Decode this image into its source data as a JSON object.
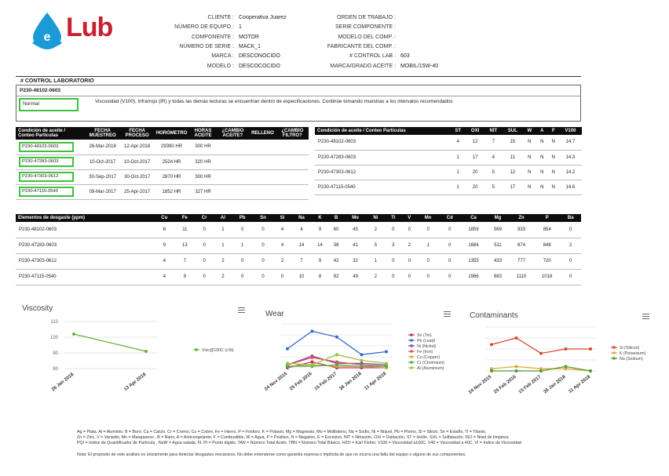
{
  "brand": {
    "prefix": "e",
    "name": "Lub",
    "drop_color": "#1a9ad6",
    "name_color": "#c8202f"
  },
  "header": {
    "left": [
      {
        "label": "CLIENTE :",
        "value": "Cooperativa Juarez"
      },
      {
        "label": "NÚMERO DE EQUIPO :",
        "value": "1"
      },
      {
        "label": "COMPONENTE :",
        "value": "MOTOR"
      },
      {
        "label": "NÚMERO DE SERIE :",
        "value": "MACK_1"
      },
      {
        "label": "MARCA :",
        "value": "DESCONOCIDO"
      },
      {
        "label": "MODELO :",
        "value": "DESCOCOCIDO"
      }
    ],
    "right": [
      {
        "label": "ORDEN DE TRABAJO :",
        "value": ""
      },
      {
        "label": "SERIE COMPONENTE :",
        "value": ""
      },
      {
        "label": "MODELO DEL COMP. :",
        "value": ""
      },
      {
        "label": "FABRICANTE DEL COMP. :",
        "value": ""
      },
      {
        "label": "# CONTROL LAB :",
        "value": "603"
      },
      {
        "label": "MARCA/GRADO ACEITE :",
        "value": "MOBIL/15W-40"
      }
    ]
  },
  "control": {
    "title": "# CONTROL LABORATORIO",
    "sample_id": "P230-48102-0603",
    "status": "Normal",
    "comment": "Viscosidad (V100), infrarrojo (IR) y todas las demás lecturas se encuentran dentro de especificaciones. Continúe tomando muestras a los intervalos recomendados"
  },
  "samples_table": {
    "headers": [
      "Condición de aceite / Conteo Particulas",
      "FECHA MUESTREO",
      "FECHA PROCESO",
      "HORÓMETRO",
      "HORAS ACEITE",
      "¿CAMBIO ACEITE?",
      "RELLENO",
      "¿CAMBIO FILTRO?"
    ],
    "rows": [
      [
        "P230-48102-0603",
        "26-Mar-2018",
        "12-Apr-2018",
        "29390 HR",
        "300 HR",
        "",
        "",
        ""
      ],
      [
        "P230-47283-0603",
        "10-Oct-2017",
        "10-Oct-2017",
        "2524 HR",
        "320 HR",
        "",
        "",
        ""
      ],
      [
        "P230-47303-0612",
        "30-Sep-2017",
        "30-Oct-2017",
        "2870 HR",
        "300 HR",
        "",
        "",
        ""
      ],
      [
        "P230-47115-0540",
        "09-Mar-2017",
        "25-Apr-2017",
        "1852 HR",
        "327 HR",
        "",
        "",
        ""
      ]
    ]
  },
  "condition_table": {
    "headers": [
      "Condición de aceite / Conteo Particulas",
      "ST",
      "OXI",
      "NIT",
      "SUL",
      "W",
      "A",
      "F",
      "V100"
    ],
    "rows": [
      [
        "P230-48102-0603",
        "4",
        "12",
        "7",
        "15",
        "N",
        "N",
        "N",
        "14.7"
      ],
      [
        "P230-47283-0603",
        "1",
        "17",
        "4",
        "11",
        "N",
        "N",
        "N",
        "14.3"
      ],
      [
        "P230-47303-0612",
        "1",
        "20",
        "5",
        "12",
        "N",
        "N",
        "N",
        "14.2"
      ],
      [
        "P230-47115-0540",
        "1",
        "20",
        "5",
        "17",
        "N",
        "N",
        "N",
        "14.6"
      ]
    ]
  },
  "elements_table": {
    "headers": [
      "Elementos de desgaste (ppm)",
      "Cu",
      "Fe",
      "Cr",
      "Al",
      "Pb",
      "Sn",
      "Si",
      "Na",
      "K",
      "B",
      "Mo",
      "Ni",
      "Ti",
      "V",
      "Mn",
      "Cd",
      "Ca",
      "Mg",
      "Zn",
      "P",
      "Ba"
    ],
    "rows": [
      [
        "P230-48102-0603",
        "6",
        "11",
        "0",
        "1",
        "0",
        "0",
        "4",
        "4",
        "9",
        "60",
        "45",
        "2",
        "0",
        "0",
        "0",
        "0",
        "1859",
        "569",
        "933",
        "854",
        "0"
      ],
      [
        "P230-47283-0603",
        "9",
        "13",
        "0",
        "1",
        "1",
        "0",
        "4",
        "14",
        "14",
        "38",
        "41",
        "5",
        "3",
        "2",
        "1",
        "0",
        "1684",
        "511",
        "874",
        "848",
        "2"
      ],
      [
        "P230-47303-0612",
        "4",
        "7",
        "0",
        "2",
        "0",
        "0",
        "2",
        "7",
        "9",
        "42",
        "32",
        "1",
        "0",
        "0",
        "0",
        "0",
        "1355",
        "433",
        "777",
        "720",
        "0"
      ],
      [
        "P230-47115-0540",
        "4",
        "9",
        "0",
        "2",
        "0",
        "0",
        "0",
        "10",
        "8",
        "92",
        "49",
        "2",
        "0",
        "0",
        "0",
        "0",
        "1966",
        "683",
        "1110",
        "1016",
        "0"
      ]
    ]
  },
  "chart_data": [
    {
      "type": "line",
      "title": "Viscosity",
      "categories": [
        "26 Jan 2018",
        "13 Apr 2018"
      ],
      "yticks": [
        "110",
        "100",
        "90",
        "80"
      ],
      "ylim": [
        80,
        110
      ],
      "series": [
        {
          "name": "Visc@100C (cSt)",
          "color": "#67b032",
          "values": [
            102,
            91
          ]
        }
      ]
    },
    {
      "type": "line",
      "title": "Wear",
      "categories": [
        "24 Nov 2015",
        "25 Feb 2016",
        "15 Feb 2017",
        "26 Jan 2018",
        "11 Apr 2018"
      ],
      "ylim": [
        0,
        30
      ],
      "series": [
        {
          "name": "Sn (Tin)",
          "color": "#c72b6a",
          "values": [
            0,
            4,
            0,
            0,
            0
          ]
        },
        {
          "name": "Pb (Lead)",
          "color": "#3b6bc7",
          "values": [
            13,
            25,
            21,
            9,
            11
          ]
        },
        {
          "name": "Ni (Nickel)",
          "color": "#8b3fa8",
          "values": [
            2,
            8,
            3,
            3,
            2
          ]
        },
        {
          "name": "Fe (Iron)",
          "color": "#d9534f",
          "values": [
            2,
            7,
            4,
            2,
            1
          ]
        },
        {
          "name": "Cu (Copper)",
          "color": "#e0a83a",
          "values": [
            1,
            2,
            1,
            1,
            0
          ]
        },
        {
          "name": "Cr (Chromium)",
          "color": "#4caf50",
          "values": [
            1,
            1,
            2,
            1,
            1
          ]
        },
        {
          "name": "Al (Aluminium)",
          "color": "#9bc53d",
          "values": [
            3,
            2,
            9,
            5,
            3
          ]
        }
      ]
    },
    {
      "type": "line",
      "title": "Contaminants",
      "categories": [
        "24 Nov 2015",
        "25 Feb 2016",
        "15 Feb 2017",
        "26 Jan 2018",
        "11 Apr 2018"
      ],
      "ylim": [
        0,
        20
      ],
      "series": [
        {
          "name": "Si (Silicon)",
          "color": "#d64b2f",
          "values": [
            12,
            15,
            8,
            10,
            10
          ]
        },
        {
          "name": "K (Potassium)",
          "color": "#e0a83a",
          "values": [
            1,
            2,
            1,
            1,
            0
          ]
        },
        {
          "name": "Na (Sodium)",
          "color": "#4d9c2a",
          "values": [
            0,
            0,
            0,
            2,
            0
          ]
        }
      ]
    }
  ],
  "glossary": [
    "Ag = Plata, Al = Aluminio, B = Boro, Ca = Calcio, Cr = Cromo, Cu = Cobre, Fe = Hierro, P = Fósforo, K = Potasio, Mg = Magnesio, Mo = Molibdeno, Na = Sodio, Ni = Niquel, Pb = Plomo, Si = Silicio, Sn = Estaño, Ti = Titanio,",
    "Zn = Zinc, V = Vanadio, Mn = Manganeso , B = Bario, A = Anticongelante, F = Combustible, W = Agua, P = Positivo, N = Negativo, E = Excesivo, NIT = Nitración, OXI = Oxidación, ST = Hollín, SUL = Sulfatación, ISO = Nivel de limpieza",
    "PQI = Indice de Quantificador de Partícula , NaW = Agua salada, FL Pt = Punto álgido, TAN = Número Total Acido, TBN = Número Total Básico, H2O = Karl Fisher, V100 = Viscosidad a100C, V40 = Viscosidad a 40C, VI = Indice de Viscosidad"
  ],
  "note": "Nota: El propósito de este análisis es únicamente para detectar desgastes mecánicos.  No debe entenderse como garantía expresa o implícita de que no ocurra una falla del equipo o alguno de sus componentes."
}
